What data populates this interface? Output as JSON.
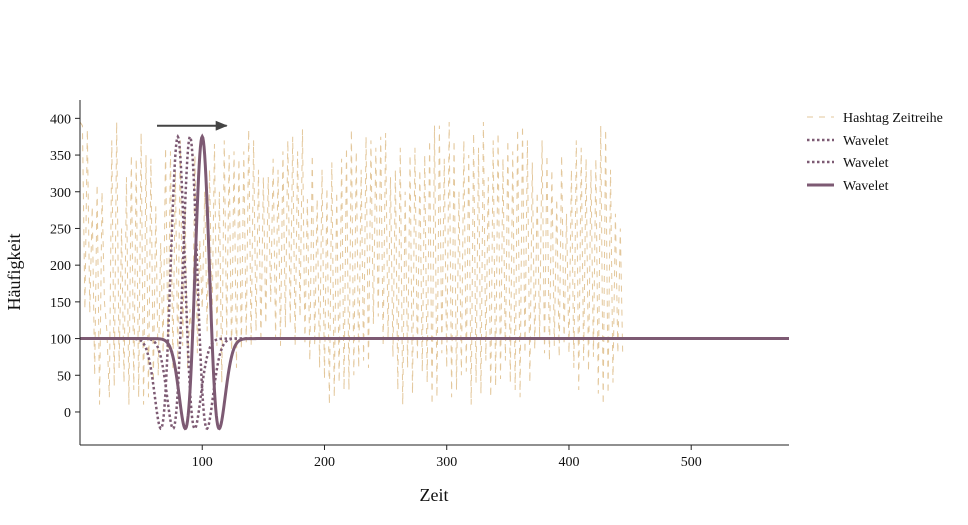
{
  "chart_data": {
    "type": "line",
    "xlabel": "Zeit",
    "ylabel": "Häufigkeit",
    "xlim": [
      0,
      580
    ],
    "ylim": [
      -45,
      425
    ],
    "xticks": [
      100,
      200,
      300,
      400,
      500
    ],
    "yticks": [
      0,
      50,
      100,
      150,
      200,
      250,
      300,
      350,
      400
    ],
    "grid": false,
    "legend_position": "right",
    "colors": {
      "hashtag": "#e3c79b",
      "wavelet": "#7d5a73",
      "arrow": "#444444"
    },
    "arrow": {
      "from": [
        63,
        390
      ],
      "to": [
        120,
        390
      ]
    },
    "hashtag_series": {
      "name": "Hashtag Zeitreihe",
      "x_start": 0,
      "x_step": 2,
      "values": [
        395,
        390,
        140,
        385,
        135,
        280,
        50,
        310,
        10,
        300,
        150,
        110,
        20,
        370,
        35,
        395,
        60,
        250,
        40,
        320,
        10,
        350,
        30,
        345,
        20,
        380,
        10,
        350,
        20,
        345,
        40,
        280,
        50,
        230,
        80,
        360,
        75,
        355,
        60,
        330,
        70,
        370,
        90,
        280,
        60,
        140,
        85,
        350,
        80,
        235,
        140,
        300,
        110,
        330,
        120,
        365,
        90,
        300,
        40,
        370,
        105,
        350,
        75,
        355,
        60,
        345,
        85,
        355,
        95,
        385,
        90,
        370,
        110,
        330,
        95,
        320,
        120,
        320,
        150,
        345,
        100,
        330,
        90,
        355,
        115,
        370,
        120,
        375,
        90,
        355,
        130,
        385,
        95,
        290,
        70,
        350,
        90,
        290,
        60,
        330,
        45,
        305,
        10,
        340,
        20,
        300,
        40,
        345,
        30,
        360,
        30,
        385,
        50,
        355,
        60,
        330,
        70,
        375,
        60,
        370,
        120,
        360,
        130,
        375,
        90,
        380,
        100,
        320,
        75,
        330,
        30,
        360,
        10,
        300,
        60,
        350,
        25,
        360,
        70,
        330,
        55,
        350,
        40,
        370,
        10,
        390,
        20,
        390,
        80,
        345,
        60,
        395,
        20,
        370,
        30,
        300,
        50,
        370,
        55,
        350,
        10,
        380,
        40,
        360,
        25,
        395,
        70,
        320,
        20,
        370,
        35,
        380,
        45,
        345,
        70,
        370,
        40,
        355,
        30,
        385,
        20,
        390,
        80,
        370,
        40,
        340,
        85,
        300,
        100,
        370,
        80,
        350,
        70,
        330,
        90,
        290,
        75,
        350,
        95,
        270,
        80,
        330,
        60,
        370,
        30,
        360,
        70,
        345,
        55,
        330,
        75,
        345,
        25,
        390,
        10,
        385,
        25,
        330,
        40,
        270,
        80,
        250,
        75
      ]
    },
    "series": [
      {
        "name": "Wavelet",
        "style": "dotted",
        "center": 80,
        "width": 8,
        "baseline": 100,
        "amplitude": 275
      },
      {
        "name": "Wavelet",
        "style": "dotted",
        "center": 90,
        "width": 8,
        "baseline": 100,
        "amplitude": 275
      },
      {
        "name": "Wavelet",
        "style": "solid",
        "center": 100,
        "width": 8,
        "baseline": 100,
        "amplitude": 275
      }
    ]
  }
}
